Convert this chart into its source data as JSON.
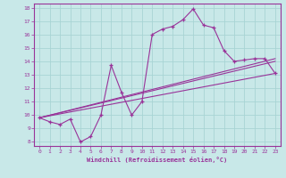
{
  "title": "",
  "xlabel": "Windchill (Refroidissement éolien,°C)",
  "ylabel": "",
  "xlim": [
    -0.5,
    23.5
  ],
  "ylim": [
    7.7,
    18.3
  ],
  "xticks": [
    0,
    1,
    2,
    3,
    4,
    5,
    6,
    7,
    8,
    9,
    10,
    11,
    12,
    13,
    14,
    15,
    16,
    17,
    18,
    19,
    20,
    21,
    22,
    23
  ],
  "yticks": [
    8,
    9,
    10,
    11,
    12,
    13,
    14,
    15,
    16,
    17,
    18
  ],
  "bg_color": "#c8e8e8",
  "line_color": "#993399",
  "grid_color": "#a8d4d4",
  "lines": [
    {
      "x": [
        0,
        1,
        2,
        3,
        4,
        5,
        6,
        7,
        8,
        9,
        10,
        11,
        12,
        13,
        14,
        15,
        16,
        17,
        18,
        19,
        20,
        21,
        22,
        23
      ],
      "y": [
        9.8,
        9.5,
        9.3,
        9.7,
        8.0,
        8.4,
        10.0,
        13.7,
        11.7,
        10.0,
        11.0,
        16.0,
        16.4,
        16.6,
        17.1,
        17.9,
        16.7,
        16.5,
        14.8,
        14.0,
        14.1,
        14.2,
        14.2,
        13.1
      ],
      "marker": "+"
    },
    {
      "x": [
        0,
        23
      ],
      "y": [
        9.8,
        13.1
      ],
      "marker": null
    },
    {
      "x": [
        0,
        23
      ],
      "y": [
        9.8,
        14.0
      ],
      "marker": null
    },
    {
      "x": [
        0,
        23
      ],
      "y": [
        9.8,
        14.2
      ],
      "marker": null
    }
  ]
}
